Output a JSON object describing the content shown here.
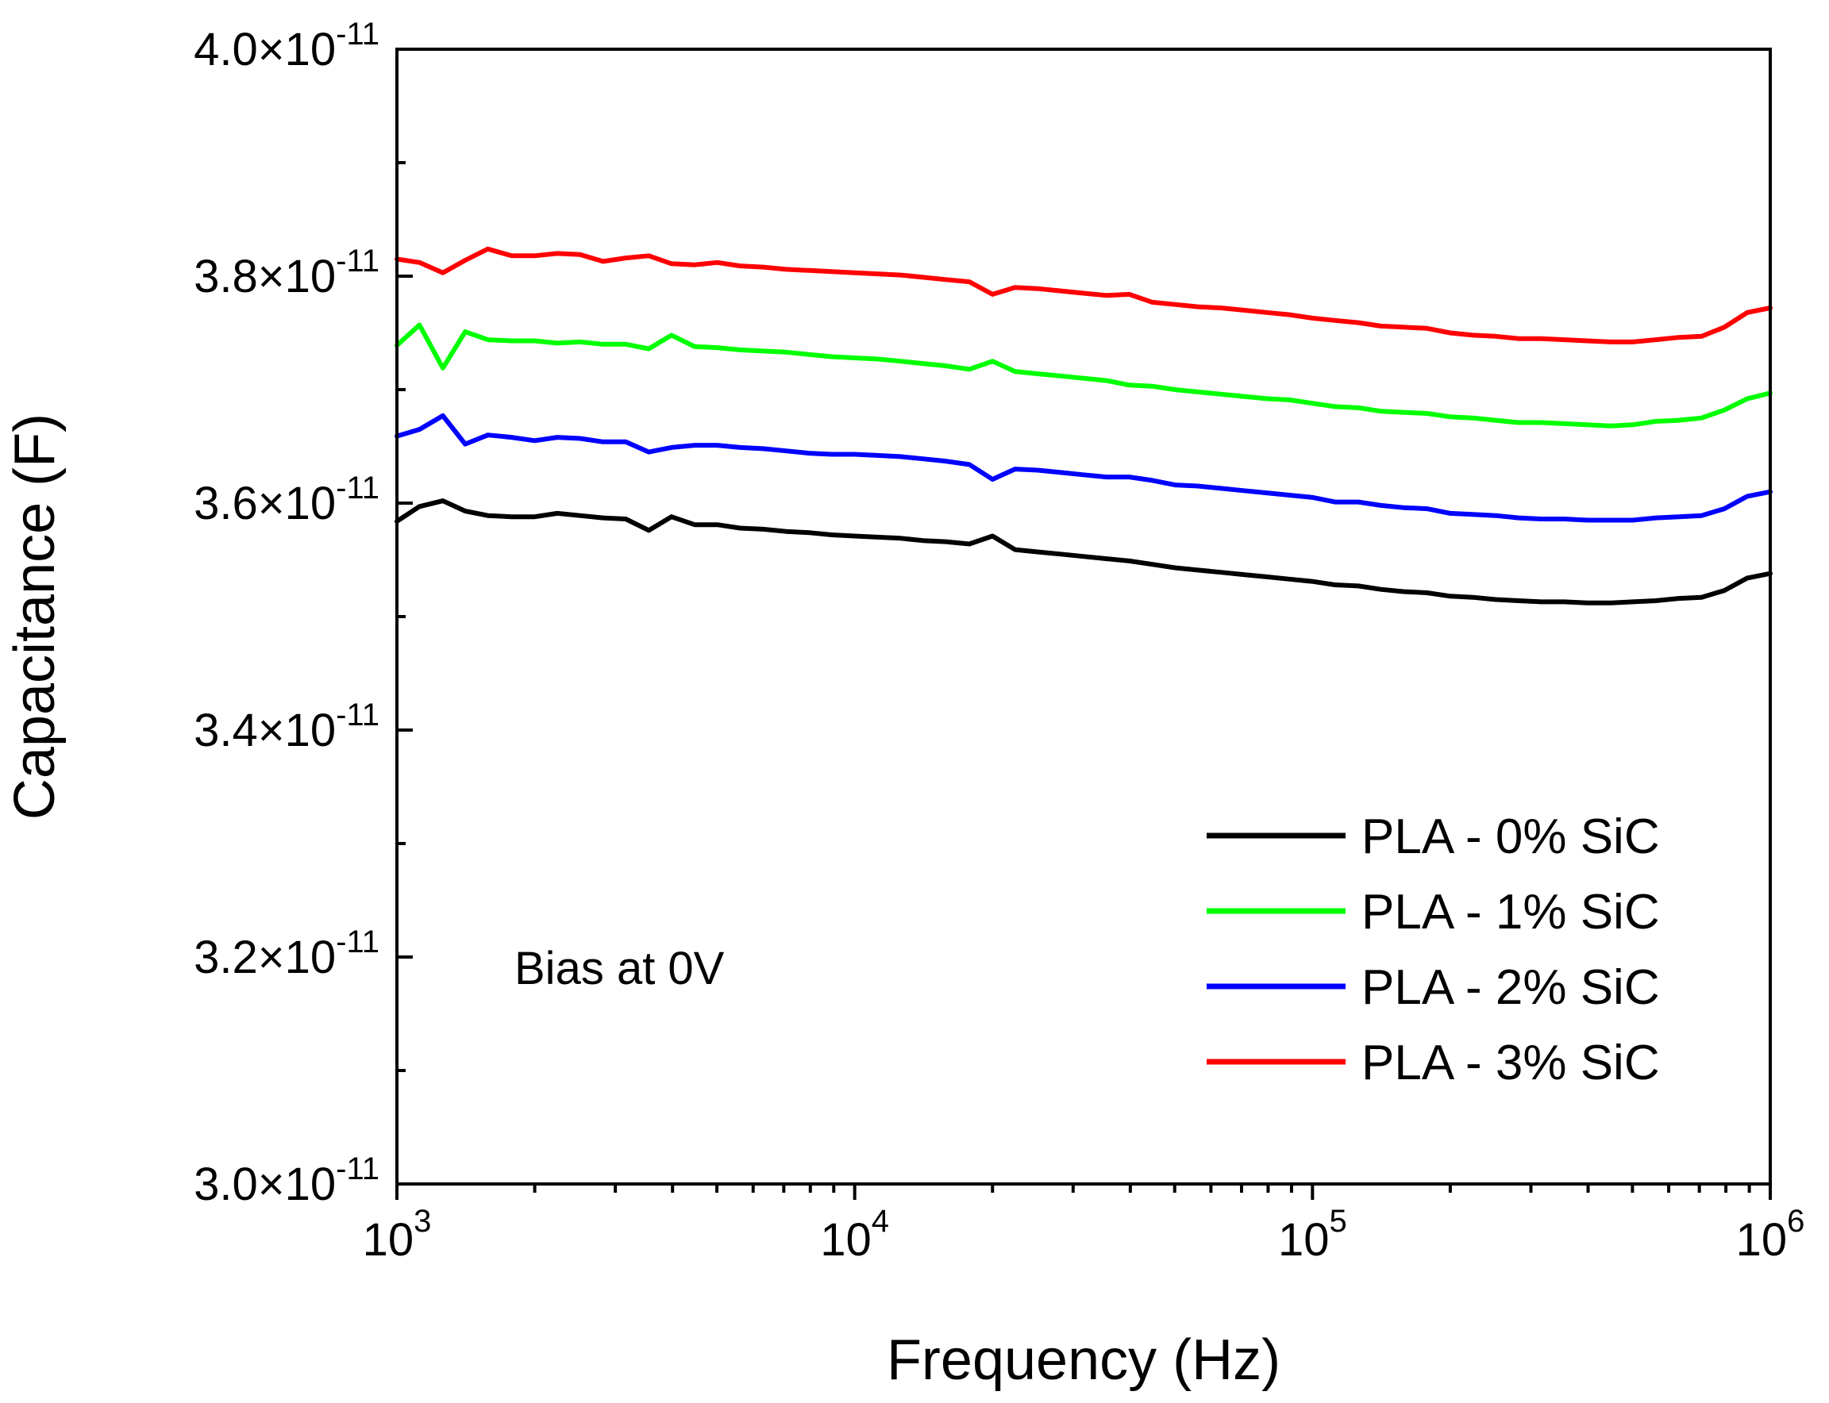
{
  "chart_data": {
    "type": "line",
    "title": "",
    "xlabel": "Frequency (Hz)",
    "ylabel": "Capacitance (F)",
    "xscale": "log",
    "xlim": [
      1000,
      1000000
    ],
    "ylim": [
      3e-11,
      4e-11
    ],
    "grid": false,
    "legend_position": "bottom-right",
    "x_ticks": [
      {
        "value": 1000,
        "base": "10",
        "exp": "3"
      },
      {
        "value": 10000,
        "base": "10",
        "exp": "4"
      },
      {
        "value": 100000,
        "base": "10",
        "exp": "5"
      },
      {
        "value": 1000000,
        "base": "10",
        "exp": "6"
      }
    ],
    "y_ticks": [
      {
        "value": 3e-11,
        "mantissa": "3.0×10",
        "exp": "-11"
      },
      {
        "value": 3.2e-11,
        "mantissa": "3.2×10",
        "exp": "-11"
      },
      {
        "value": 3.4e-11,
        "mantissa": "3.4×10",
        "exp": "-11"
      },
      {
        "value": 3.6e-11,
        "mantissa": "3.6×10",
        "exp": "-11"
      },
      {
        "value": 3.8e-11,
        "mantissa": "3.8×10",
        "exp": "-11"
      },
      {
        "value": 4e-11,
        "mantissa": "4.0×10",
        "exp": "-11"
      }
    ],
    "annotation": "Bias at 0V",
    "x": [
      1000,
      1120,
      1260,
      1410,
      1580,
      1780,
      2000,
      2240,
      2510,
      2820,
      3160,
      3550,
      3980,
      4470,
      5010,
      5620,
      6310,
      7080,
      7940,
      8910,
      10000,
      11200,
      12600,
      14100,
      15800,
      17800,
      20000,
      22400,
      25100,
      28200,
      31600,
      35500,
      39800,
      44700,
      50100,
      56200,
      63100,
      70800,
      79400,
      89100,
      100000,
      112000,
      126000,
      141000,
      158000,
      178000,
      200000,
      224000,
      251000,
      282000,
      316000,
      355000,
      398000,
      447000,
      501000,
      562000,
      631000,
      708000,
      794000,
      891000,
      1000000
    ],
    "series": [
      {
        "name": "PLA - 0% SiC",
        "color": "#000000",
        "values": [
          3.584e-11,
          3.597e-11,
          3.602e-11,
          3.593e-11,
          3.589e-11,
          3.588e-11,
          3.588e-11,
          3.591e-11,
          3.589e-11,
          3.587e-11,
          3.586e-11,
          3.576e-11,
          3.588e-11,
          3.581e-11,
          3.581e-11,
          3.578e-11,
          3.577e-11,
          3.575e-11,
          3.574e-11,
          3.572e-11,
          3.571e-11,
          3.57e-11,
          3.569e-11,
          3.567e-11,
          3.566e-11,
          3.564e-11,
          3.571e-11,
          3.559e-11,
          3.557e-11,
          3.555e-11,
          3.553e-11,
          3.551e-11,
          3.549e-11,
          3.546e-11,
          3.543e-11,
          3.541e-11,
          3.539e-11,
          3.537e-11,
          3.535e-11,
          3.533e-11,
          3.531e-11,
          3.528e-11,
          3.527e-11,
          3.524e-11,
          3.522e-11,
          3.521e-11,
          3.518e-11,
          3.517e-11,
          3.515e-11,
          3.514e-11,
          3.513e-11,
          3.513e-11,
          3.512e-11,
          3.512e-11,
          3.513e-11,
          3.514e-11,
          3.516e-11,
          3.517e-11,
          3.523e-11,
          3.534e-11,
          3.538e-11
        ]
      },
      {
        "name": "PLA - 1% SiC",
        "color": "#00ff00",
        "values": [
          3.739e-11,
          3.757e-11,
          3.719e-11,
          3.751e-11,
          3.744e-11,
          3.743e-11,
          3.743e-11,
          3.741e-11,
          3.742e-11,
          3.74e-11,
          3.74e-11,
          3.736e-11,
          3.748e-11,
          3.738e-11,
          3.737e-11,
          3.735e-11,
          3.734e-11,
          3.733e-11,
          3.731e-11,
          3.729e-11,
          3.728e-11,
          3.727e-11,
          3.725e-11,
          3.723e-11,
          3.721e-11,
          3.718e-11,
          3.725e-11,
          3.716e-11,
          3.714e-11,
          3.712e-11,
          3.71e-11,
          3.708e-11,
          3.704e-11,
          3.703e-11,
          3.7e-11,
          3.698e-11,
          3.696e-11,
          3.694e-11,
          3.692e-11,
          3.691e-11,
          3.688e-11,
          3.685e-11,
          3.684e-11,
          3.681e-11,
          3.68e-11,
          3.679e-11,
          3.676e-11,
          3.675e-11,
          3.673e-11,
          3.671e-11,
          3.671e-11,
          3.67e-11,
          3.669e-11,
          3.668e-11,
          3.669e-11,
          3.672e-11,
          3.673e-11,
          3.675e-11,
          3.682e-11,
          3.692e-11,
          3.697e-11
        ]
      },
      {
        "name": "PLA - 2% SiC",
        "color": "#0000ff",
        "values": [
          3.659e-11,
          3.665e-11,
          3.677e-11,
          3.652e-11,
          3.66e-11,
          3.658e-11,
          3.655e-11,
          3.658e-11,
          3.657e-11,
          3.654e-11,
          3.654e-11,
          3.645e-11,
          3.649e-11,
          3.651e-11,
          3.651e-11,
          3.649e-11,
          3.648e-11,
          3.646e-11,
          3.644e-11,
          3.643e-11,
          3.643e-11,
          3.642e-11,
          3.641e-11,
          3.639e-11,
          3.637e-11,
          3.634e-11,
          3.621e-11,
          3.63e-11,
          3.629e-11,
          3.627e-11,
          3.625e-11,
          3.623e-11,
          3.623e-11,
          3.62e-11,
          3.616e-11,
          3.615e-11,
          3.613e-11,
          3.611e-11,
          3.609e-11,
          3.607e-11,
          3.605e-11,
          3.601e-11,
          3.601e-11,
          3.598e-11,
          3.596e-11,
          3.595e-11,
          3.591e-11,
          3.59e-11,
          3.589e-11,
          3.587e-11,
          3.586e-11,
          3.586e-11,
          3.585e-11,
          3.585e-11,
          3.585e-11,
          3.587e-11,
          3.588e-11,
          3.589e-11,
          3.595e-11,
          3.606e-11,
          3.61e-11
        ]
      },
      {
        "name": "PLA - 3% SiC",
        "color": "#ff0000",
        "values": [
          3.815e-11,
          3.812e-11,
          3.803e-11,
          3.814e-11,
          3.824e-11,
          3.818e-11,
          3.818e-11,
          3.82e-11,
          3.819e-11,
          3.813e-11,
          3.816e-11,
          3.818e-11,
          3.811e-11,
          3.81e-11,
          3.812e-11,
          3.809e-11,
          3.808e-11,
          3.806e-11,
          3.805e-11,
          3.804e-11,
          3.803e-11,
          3.802e-11,
          3.801e-11,
          3.799e-11,
          3.797e-11,
          3.795e-11,
          3.784e-11,
          3.79e-11,
          3.789e-11,
          3.787e-11,
          3.785e-11,
          3.783e-11,
          3.784e-11,
          3.777e-11,
          3.775e-11,
          3.773e-11,
          3.772e-11,
          3.77e-11,
          3.768e-11,
          3.766e-11,
          3.763e-11,
          3.761e-11,
          3.759e-11,
          3.756e-11,
          3.755e-11,
          3.754e-11,
          3.75e-11,
          3.748e-11,
          3.747e-11,
          3.745e-11,
          3.745e-11,
          3.744e-11,
          3.743e-11,
          3.742e-11,
          3.742e-11,
          3.744e-11,
          3.746e-11,
          3.747e-11,
          3.755e-11,
          3.768e-11,
          3.772e-11
        ]
      }
    ]
  }
}
